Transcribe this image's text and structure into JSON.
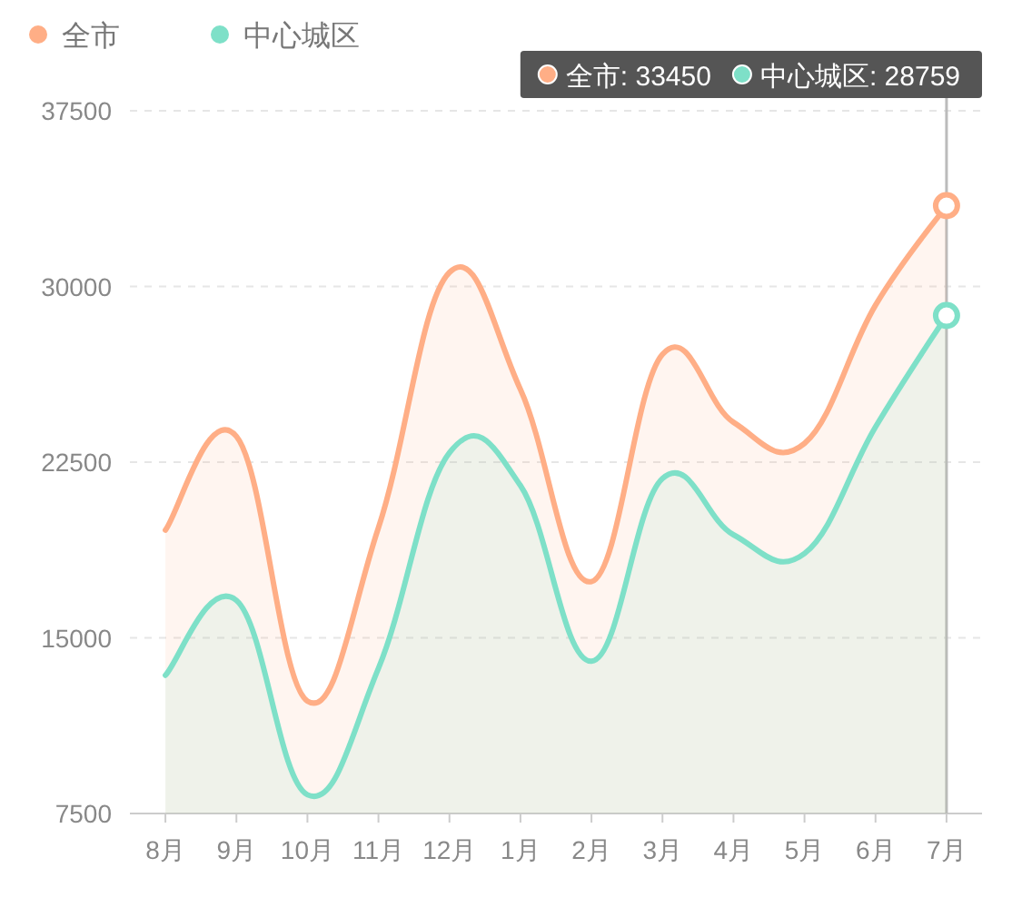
{
  "chart_data": {
    "type": "area",
    "categories": [
      "8月",
      "9月",
      "10月",
      "11月",
      "12月",
      "1月",
      "2月",
      "3月",
      "4月",
      "5月",
      "6月",
      "7月"
    ],
    "series": [
      {
        "name": "全市",
        "color": "#ffae86",
        "values": [
          19600,
          23600,
          12300,
          19700,
          30600,
          25600,
          17400,
          27100,
          24200,
          23300,
          29200,
          33450
        ]
      },
      {
        "name": "中心城区",
        "color": "#7ee0c8",
        "values": [
          13400,
          16600,
          8300,
          13700,
          22900,
          21500,
          14000,
          21800,
          19400,
          18600,
          24000,
          28759
        ]
      }
    ],
    "annotations": [
      "全市: 33450",
      "中心城区: 28759"
    ],
    "ylim": [
      7500,
      37500
    ],
    "yticks": [
      7500,
      15000,
      22500,
      30000,
      37500
    ],
    "grid": "y",
    "legend": "top left",
    "marker": "none",
    "line_style": "solid",
    "ref_lines": [
      {
        "axis": "x",
        "value": "7月",
        "color": "#bbbbbb",
        "line_style": "solid"
      }
    ]
  }
}
